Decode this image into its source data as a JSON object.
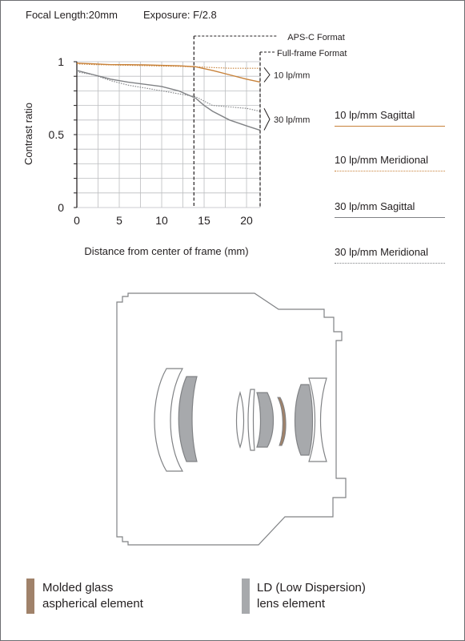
{
  "header": {
    "focal_length": "Focal Length:20mm",
    "exposure": "Exposure: F/2.8"
  },
  "chart_data": {
    "type": "line",
    "ylabel": "Contrast ratio",
    "xlabel": "Distance from center of frame (mm)",
    "xlim": [
      0,
      21.6
    ],
    "ylim": [
      0,
      1
    ],
    "x_ticks": [
      "0",
      "5",
      "10",
      "15",
      "20"
    ],
    "y_ticks": [
      "1",
      "0.5",
      "0"
    ],
    "grid": true,
    "format_markers": [
      {
        "name": "APS-C Format",
        "x": 13.8
      },
      {
        "name": "Full-frame Format",
        "x": 21.6
      }
    ],
    "frequency_labels": [
      {
        "text": "10 lp/mm",
        "y_range": [
          0.86,
          0.96
        ]
      },
      {
        "text": "30 lp/mm",
        "y_range": [
          0.53,
          0.68
        ]
      }
    ],
    "series": [
      {
        "name": "10 lp/mm Sagittal",
        "color": "#c8823a",
        "style": "solid",
        "x": [
          0,
          2,
          4,
          6,
          8,
          10,
          12,
          14,
          16,
          18,
          20,
          21.6
        ],
        "y": [
          0.99,
          0.985,
          0.98,
          0.98,
          0.978,
          0.975,
          0.972,
          0.965,
          0.94,
          0.91,
          0.88,
          0.86
        ]
      },
      {
        "name": "10 lp/mm Meridional",
        "color": "#c8823a",
        "style": "dotted",
        "x": [
          0,
          2,
          4,
          6,
          8,
          10,
          12,
          14,
          16,
          18,
          20,
          21.6
        ],
        "y": [
          0.985,
          0.98,
          0.978,
          0.975,
          0.973,
          0.97,
          0.968,
          0.965,
          0.96,
          0.955,
          0.955,
          0.955
        ]
      },
      {
        "name": "30 lp/mm Sagittal",
        "color": "#808285",
        "style": "solid",
        "x": [
          0,
          2,
          4,
          6,
          8,
          10,
          12,
          14,
          15,
          16,
          18,
          20,
          21.6
        ],
        "y": [
          0.94,
          0.91,
          0.88,
          0.86,
          0.845,
          0.83,
          0.8,
          0.75,
          0.7,
          0.66,
          0.6,
          0.56,
          0.53
        ]
      },
      {
        "name": "30 lp/mm Meridional",
        "color": "#808285",
        "style": "dotted",
        "x": [
          0,
          2,
          4,
          6,
          8,
          10,
          12,
          14,
          15,
          16,
          18,
          20,
          21.6
        ],
        "y": [
          0.93,
          0.91,
          0.87,
          0.84,
          0.82,
          0.8,
          0.78,
          0.76,
          0.73,
          0.7,
          0.69,
          0.68,
          0.66
        ]
      }
    ]
  },
  "legend": [
    {
      "label": "10 lp/mm Sagittal",
      "color": "#c8823a",
      "style": "solid"
    },
    {
      "label": "10 lp/mm Meridional",
      "color": "#c8823a",
      "style": "dotted"
    },
    {
      "label": "30 lp/mm Sagittal",
      "color": "#808285",
      "style": "solid"
    },
    {
      "label": "30 lp/mm Meridional",
      "color": "#808285",
      "style": "dotted"
    }
  ],
  "element_key": [
    {
      "line1": "Molded glass",
      "line2": "aspherical element",
      "color": "#a0826a"
    },
    {
      "line1": "LD (Low Dispersion)",
      "line2": "lens element",
      "color": "#a7a9ac"
    }
  ]
}
